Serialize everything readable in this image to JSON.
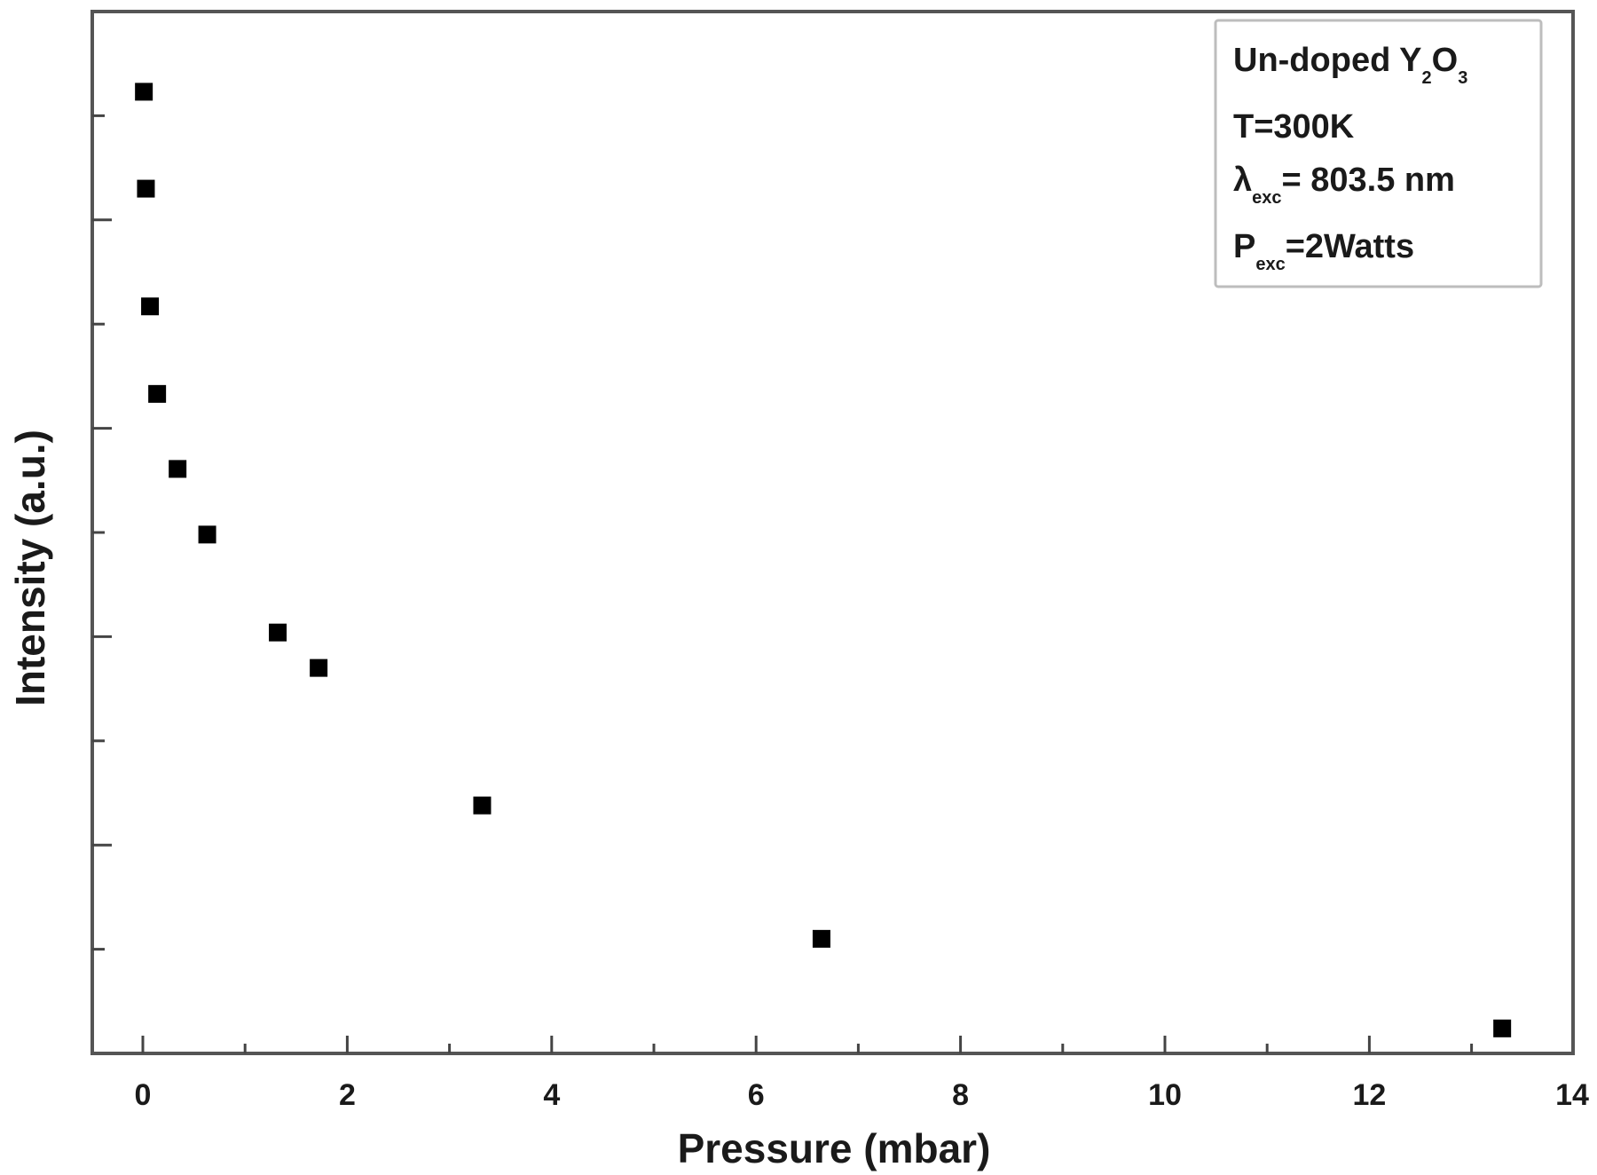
{
  "chart_data": {
    "type": "scatter",
    "title": "",
    "xlabel": "Pressure (mbar)",
    "ylabel": "Intensity (a.u.)",
    "xlim": [
      -0.5,
      14
    ],
    "ylim": [
      0,
      10
    ],
    "x_ticks": [
      0,
      2,
      4,
      6,
      8,
      10,
      12,
      14
    ],
    "x_tick_labels": [
      "0",
      "2",
      "4",
      "6",
      "8",
      "10",
      "12",
      "14"
    ],
    "x_minor_ticks": [
      1,
      3,
      5,
      7,
      9,
      11,
      13
    ],
    "y_tick_labels": [],
    "y_ticks_note": "unlabeled ticks",
    "grid": false,
    "legend_position": "upper right",
    "marker": "filled-square",
    "series": [
      {
        "name": "Un-doped Y2O3",
        "x": [
          0.01,
          0.03,
          0.07,
          0.14,
          0.34,
          0.63,
          1.32,
          1.72,
          3.32,
          6.64,
          13.3
        ],
        "y": [
          9.23,
          8.3,
          7.17,
          6.33,
          5.61,
          4.98,
          4.04,
          3.7,
          2.38,
          1.1,
          0.24
        ]
      }
    ],
    "annotation_box": {
      "lines": [
        {
          "main": "Un-doped Y",
          "sub1": "2",
          "mid": "O",
          "sub2": "3"
        },
        {
          "main": "T=300K"
        },
        {
          "main": "λ",
          "sub1": "exc",
          "rest": "= 803.5 nm"
        },
        {
          "main": "P",
          "sub1": "exc",
          "rest": "=2Watts"
        }
      ]
    },
    "colors": {
      "marker": "#000000",
      "axis": "#555555",
      "text": "#1a1a1a",
      "legend_border": "#bdbdbd"
    }
  }
}
